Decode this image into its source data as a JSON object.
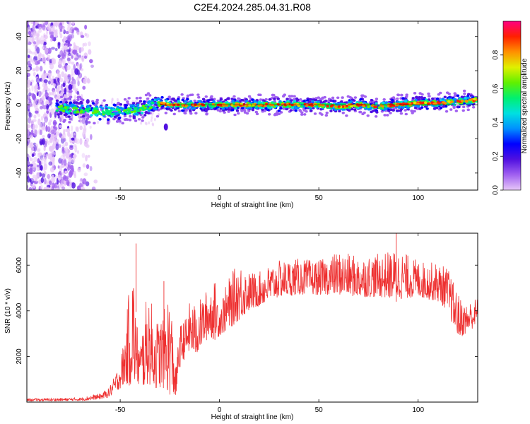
{
  "title": "C2E4.2024.285.04.31.R08",
  "chart_data": [
    {
      "type": "heatmap",
      "xlabel": "Height of straight line (km)",
      "ylabel": "Frequency (Hz)",
      "xlim": [
        -97,
        130
      ],
      "ylim": [
        -50,
        49
      ],
      "x_ticks": [
        -50,
        0,
        50,
        100
      ],
      "y_ticks": [
        -40,
        -20,
        0,
        20,
        40
      ],
      "colorbar": {
        "label": "Normalized spectral amplitude",
        "range": [
          0,
          1
        ],
        "ticks": [
          "0.0",
          "0.2",
          "0.4",
          "0.6",
          "0.8"
        ],
        "colors": [
          "#e8c8f8",
          "#a060f0",
          "#5010e0",
          "#0000ff",
          "#0090ff",
          "#00e0e0",
          "#00f070",
          "#60f000",
          "#e0f000",
          "#ff9000",
          "#ff2000",
          "#ff0080"
        ]
      },
      "ridge": {
        "x": [
          -82,
          -70,
          -60,
          -50,
          -42,
          -36,
          -30,
          -25,
          -20,
          -10,
          0,
          10,
          20,
          30,
          40,
          50,
          60,
          70,
          80,
          90,
          100,
          110,
          120,
          130
        ],
        "freq": [
          -2,
          -3,
          -4,
          -4,
          -3,
          -1,
          1,
          0,
          0,
          0,
          0,
          0,
          0,
          0,
          0,
          0,
          -1,
          0,
          -1,
          0,
          1,
          1,
          2,
          3
        ]
      },
      "noise_region": {
        "x": [
          -97,
          -62
        ],
        "note": ""
      }
    },
    {
      "type": "line",
      "xlabel": "Height of straight line (km)",
      "ylabel": "SNR (10 * v/v)",
      "xlim": [
        -97,
        130
      ],
      "ylim": [
        0,
        7400
      ],
      "x_ticks": [
        -50,
        0,
        50,
        100
      ],
      "y_ticks": [
        2000,
        4000,
        6000
      ],
      "color": "#ee3030",
      "envelope": {
        "x": [
          -97,
          -80,
          -70,
          -60,
          -56,
          -53,
          -50,
          -47,
          -44,
          -42,
          -40,
          -36,
          -32,
          -28,
          -25,
          -22,
          -20,
          -17,
          -15,
          -12,
          -8,
          -5,
          -2,
          0,
          5,
          10,
          15,
          20,
          25,
          30,
          40,
          50,
          60,
          70,
          80,
          90,
          100,
          110,
          115,
          118,
          121,
          124,
          127,
          130
        ],
        "lo": [
          50,
          50,
          60,
          120,
          200,
          400,
          600,
          800,
          600,
          900,
          500,
          800,
          600,
          600,
          300,
          200,
          1500,
          2000,
          2200,
          2000,
          2600,
          2800,
          2700,
          2900,
          3200,
          3600,
          4000,
          4200,
          4400,
          4600,
          4700,
          4700,
          4700,
          4600,
          4600,
          4500,
          4600,
          4400,
          4000,
          3200,
          2800,
          3000,
          3200,
          3300
        ],
        "hi": [
          150,
          180,
          200,
          380,
          600,
          1100,
          1800,
          3400,
          6900,
          3800,
          2700,
          5000,
          3600,
          4000,
          5200,
          1500,
          3400,
          3700,
          4400,
          4300,
          4700,
          5200,
          5300,
          4400,
          5500,
          6200,
          5700,
          5700,
          6000,
          6200,
          6300,
          6200,
          6600,
          6400,
          6500,
          6700,
          6200,
          6100,
          5900,
          5200,
          4600,
          4300,
          4500,
          4600
        ]
      },
      "spikes": [
        {
          "x": -42,
          "y": 6950
        },
        {
          "x": 89,
          "y": 7400
        },
        {
          "x": -28,
          "y": 5300
        }
      ]
    }
  ]
}
